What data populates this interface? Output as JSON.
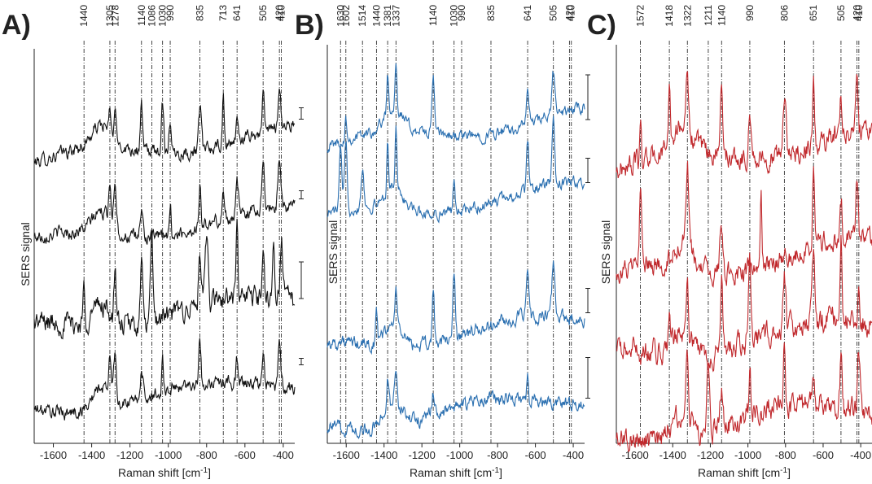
{
  "figure": {
    "panels": [
      {
        "label": "A)",
        "color": "#111111"
      },
      {
        "label": "B)",
        "color": "#2a6fb0"
      },
      {
        "label": "C)",
        "color": "#c0282c"
      }
    ],
    "ylabel": "SERS signal",
    "xlabel_main": "Raman shift [cm",
    "xlabel_sup": "-1",
    "xlabel_end": "]"
  },
  "chart_data": [
    {
      "type": "line",
      "panel_label": "A)",
      "color": "#111111",
      "xlabel": "Raman shift [cm-1]",
      "ylabel": "SERS signal",
      "xlim": [
        -1700,
        -340
      ],
      "xticks": [
        -1600,
        -1400,
        -1200,
        -1000,
        -800,
        -600,
        -400
      ],
      "xtick_labels": [
        "-1600",
        "-1400",
        "-1200",
        "-1000",
        "-800",
        "-600",
        "-400"
      ],
      "ytick_labels_shown": false,
      "scale_bars": true,
      "marked_peaks": [
        1440,
        1305,
        1278,
        1140,
        1086,
        1030,
        990,
        835,
        713,
        641,
        505,
        420,
        410
      ],
      "peak_labels": [
        "1440",
        "1305",
        "1278",
        "1140",
        "1086",
        "1030",
        "990",
        "835",
        "713",
        "641",
        "505",
        "420",
        "410"
      ],
      "series_count": 4,
      "series_peak_pattern": [
        [
          1305,
          1278,
          1140,
          1030,
          990,
          835,
          713,
          641,
          505,
          420
        ],
        [
          1305,
          1278,
          1140,
          990,
          835,
          713,
          641,
          505,
          420
        ],
        [
          1440,
          1278,
          1140,
          1086,
          835,
          800,
          641,
          505,
          450,
          410
        ],
        [
          1305,
          1278,
          1140,
          1030,
          835,
          641,
          505,
          420
        ]
      ],
      "series_peak_height": [
        0.6,
        0.6,
        0.9,
        0.6
      ],
      "series_noise": [
        0.06,
        0.06,
        0.1,
        0.06
      ]
    },
    {
      "type": "line",
      "panel_label": "B)",
      "color": "#2a6fb0",
      "xlabel": "Raman shift [cm-1]",
      "ylabel": "SERS signal",
      "xlim": [
        -1700,
        -340
      ],
      "xticks": [
        -1600,
        -1400,
        -1200,
        -1000,
        -800,
        -600,
        -400
      ],
      "xtick_labels": [
        "-1600",
        "-1400",
        "-1200",
        "-1000",
        "-800",
        "-600",
        "-400"
      ],
      "ytick_labels_shown": false,
      "scale_bars": true,
      "marked_peaks": [
        1630,
        1602,
        1514,
        1440,
        1381,
        1337,
        1140,
        1030,
        990,
        835,
        641,
        505,
        420,
        410
      ],
      "peak_labels": [
        "1630",
        "1602",
        "1514",
        "1440",
        "1381",
        "1337",
        "1140",
        "1030",
        "990",
        "835",
        "641",
        "505",
        "420",
        "410"
      ],
      "series_count": 4,
      "series_peak_pattern": [
        [
          1602,
          1381,
          1337,
          1140,
          641,
          505
        ],
        [
          1630,
          1602,
          1514,
          1381,
          1337,
          1030,
          641,
          505
        ],
        [
          1440,
          1337,
          1140,
          1030,
          641,
          505
        ],
        [
          1381,
          1337,
          1140,
          641
        ]
      ],
      "series_peak_height": [
        0.7,
        0.9,
        0.8,
        0.5
      ],
      "series_noise": [
        0.05,
        0.05,
        0.06,
        0.06
      ]
    },
    {
      "type": "line",
      "panel_label": "C)",
      "color": "#c0282c",
      "xlabel": "Raman shift [cm-1]",
      "ylabel": "SERS signal",
      "xlim": [
        -1700,
        -340
      ],
      "xticks": [
        -1600,
        -1400,
        -1200,
        -1000,
        -800,
        -600,
        -400
      ],
      "xtick_labels": [
        "-1600",
        "-1400",
        "-1200",
        "-1000",
        "-800",
        "-600",
        "-400"
      ],
      "ytick_labels_shown": false,
      "scale_bars": false,
      "marked_peaks": [
        1572,
        1418,
        1322,
        1211,
        1140,
        990,
        806,
        651,
        505,
        420,
        410
      ],
      "peak_labels": [
        "1572",
        "1418",
        "1322",
        "1211",
        "1140",
        "990",
        "806",
        "651",
        "505",
        "420",
        "410"
      ],
      "series_count": 4,
      "series_peak_pattern": [
        [
          1572,
          1418,
          1322,
          1140,
          990,
          806,
          651,
          505,
          420
        ],
        [
          1572,
          1322,
          1140,
          930,
          651,
          505,
          420
        ],
        [
          1418,
          1322,
          1140,
          990,
          806,
          651,
          505,
          410
        ],
        [
          1322,
          1211,
          1140,
          990,
          806,
          651,
          505,
          410
        ]
      ],
      "series_peak_height": [
        0.8,
        0.9,
        0.8,
        0.7
      ],
      "series_noise": [
        0.08,
        0.08,
        0.09,
        0.09
      ]
    }
  ]
}
